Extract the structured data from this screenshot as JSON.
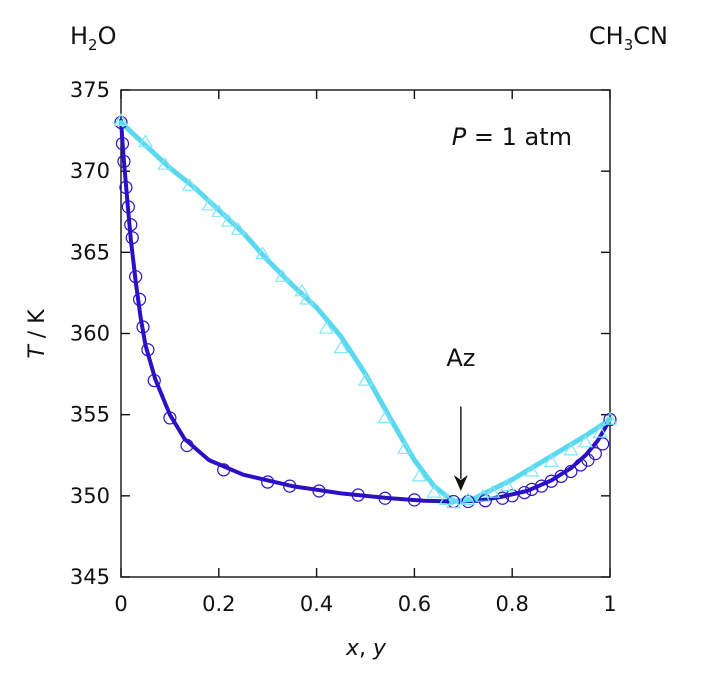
{
  "chart_data": {
    "type": "line",
    "title": "",
    "xlabel_parts": [
      {
        "text": "x",
        "italic": true
      },
      {
        "text": ", ",
        "italic": false
      },
      {
        "text": "y",
        "italic": true
      }
    ],
    "ylabel_parts": [
      {
        "text": "T",
        "italic": true
      },
      {
        "text": " / K",
        "italic": false
      }
    ],
    "xlim": [
      0,
      1
    ],
    "ylim": [
      345,
      375
    ],
    "x_ticks": [
      0,
      0.2,
      0.4,
      0.6,
      0.8,
      1
    ],
    "x_tick_labels": [
      "0",
      "0.2",
      "0.4",
      "0.6",
      "0.8",
      "1"
    ],
    "y_ticks": [
      345,
      350,
      355,
      360,
      365,
      370,
      375
    ],
    "y_tick_labels": [
      "345",
      "350",
      "355",
      "360",
      "365",
      "370",
      "375"
    ],
    "grid": false,
    "component_left": [
      {
        "text": "H",
        "sub": false
      },
      {
        "text": "2",
        "sub": true
      },
      {
        "text": "O",
        "sub": false
      }
    ],
    "component_right": [
      {
        "text": "CH",
        "sub": false
      },
      {
        "text": "3",
        "sub": true
      },
      {
        "text": "CN",
        "sub": false
      }
    ],
    "annotation_pressure": [
      {
        "text": "P",
        "italic": true
      },
      {
        "text": " = 1 atm",
        "italic": false
      }
    ],
    "azeotrope": {
      "label": "Az",
      "x": 0.695,
      "y_text": 358.0,
      "y_arrow_start": 355.5,
      "y_arrow_end": 350.3
    },
    "series": [
      {
        "role": "liquid",
        "color": "#2a12c4",
        "marker": "circle",
        "line": [
          [
            0.0,
            373.1
          ],
          [
            0.005,
            371.0
          ],
          [
            0.01,
            369.2
          ],
          [
            0.015,
            367.5
          ],
          [
            0.02,
            365.8
          ],
          [
            0.03,
            363.2
          ],
          [
            0.04,
            361.0
          ],
          [
            0.05,
            359.3
          ],
          [
            0.07,
            357.2
          ],
          [
            0.1,
            355.0
          ],
          [
            0.13,
            353.5
          ],
          [
            0.18,
            352.2
          ],
          [
            0.25,
            351.3
          ],
          [
            0.35,
            350.6
          ],
          [
            0.45,
            350.15
          ],
          [
            0.55,
            349.85
          ],
          [
            0.62,
            349.7
          ],
          [
            0.68,
            349.65
          ],
          [
            0.73,
            349.7
          ],
          [
            0.78,
            349.95
          ],
          [
            0.83,
            350.3
          ],
          [
            0.88,
            350.95
          ],
          [
            0.92,
            351.7
          ],
          [
            0.95,
            352.5
          ],
          [
            0.975,
            353.4
          ],
          [
            1.0,
            354.7
          ]
        ],
        "points": [
          [
            0.0,
            373.0
          ],
          [
            0.003,
            371.7
          ],
          [
            0.006,
            370.6
          ],
          [
            0.01,
            369.0
          ],
          [
            0.015,
            367.8
          ],
          [
            0.02,
            366.7
          ],
          [
            0.023,
            365.9
          ],
          [
            0.03,
            363.5
          ],
          [
            0.038,
            362.1
          ],
          [
            0.045,
            360.4
          ],
          [
            0.055,
            359.0
          ],
          [
            0.068,
            357.1
          ],
          [
            0.1,
            354.8
          ],
          [
            0.135,
            353.1
          ],
          [
            0.21,
            351.6
          ],
          [
            0.3,
            350.85
          ],
          [
            0.345,
            350.6
          ],
          [
            0.405,
            350.3
          ],
          [
            0.485,
            350.05
          ],
          [
            0.54,
            349.85
          ],
          [
            0.6,
            349.75
          ],
          [
            0.68,
            349.65
          ],
          [
            0.71,
            349.65
          ],
          [
            0.745,
            349.7
          ],
          [
            0.78,
            349.85
          ],
          [
            0.8,
            350.0
          ],
          [
            0.825,
            350.2
          ],
          [
            0.84,
            350.4
          ],
          [
            0.86,
            350.6
          ],
          [
            0.88,
            350.9
          ],
          [
            0.9,
            351.2
          ],
          [
            0.92,
            351.5
          ],
          [
            0.94,
            351.9
          ],
          [
            0.955,
            352.2
          ],
          [
            0.97,
            352.6
          ],
          [
            0.985,
            353.2
          ],
          [
            1.0,
            354.7
          ]
        ]
      },
      {
        "role": "vapor",
        "color": "#5ad8f0",
        "marker": "triangle",
        "line": [
          [
            0.0,
            373.0
          ],
          [
            0.05,
            371.6
          ],
          [
            0.1,
            370.2
          ],
          [
            0.15,
            369.0
          ],
          [
            0.2,
            367.6
          ],
          [
            0.25,
            366.2
          ],
          [
            0.3,
            364.5
          ],
          [
            0.35,
            363.0
          ],
          [
            0.4,
            361.6
          ],
          [
            0.45,
            359.8
          ],
          [
            0.5,
            357.5
          ],
          [
            0.55,
            354.8
          ],
          [
            0.6,
            352.2
          ],
          [
            0.64,
            350.6
          ],
          [
            0.68,
            349.65
          ],
          [
            0.72,
            349.8
          ],
          [
            0.76,
            350.4
          ],
          [
            0.8,
            351.0
          ],
          [
            0.85,
            351.9
          ],
          [
            0.9,
            352.8
          ],
          [
            0.95,
            353.7
          ],
          [
            1.0,
            354.7
          ]
        ],
        "points": [
          [
            0.0,
            373.1
          ],
          [
            0.05,
            371.8
          ],
          [
            0.09,
            370.4
          ],
          [
            0.14,
            369.1
          ],
          [
            0.18,
            367.9
          ],
          [
            0.2,
            367.5
          ],
          [
            0.22,
            366.9
          ],
          [
            0.24,
            366.4
          ],
          [
            0.29,
            364.9
          ],
          [
            0.33,
            363.5
          ],
          [
            0.37,
            362.6
          ],
          [
            0.38,
            362.1
          ],
          [
            0.42,
            360.3
          ],
          [
            0.45,
            359.1
          ],
          [
            0.5,
            357.1
          ],
          [
            0.54,
            354.8
          ],
          [
            0.58,
            352.9
          ],
          [
            0.61,
            351.2
          ],
          [
            0.64,
            350.2
          ],
          [
            0.665,
            349.75
          ],
          [
            0.68,
            349.55
          ],
          [
            0.71,
            349.75
          ],
          [
            0.74,
            349.95
          ],
          [
            0.76,
            350.2
          ],
          [
            0.79,
            350.6
          ],
          [
            0.84,
            351.5
          ],
          [
            0.88,
            352.1
          ],
          [
            0.92,
            352.8
          ],
          [
            0.95,
            353.3
          ],
          [
            0.98,
            353.9
          ],
          [
            1.0,
            354.7
          ]
        ]
      }
    ]
  }
}
